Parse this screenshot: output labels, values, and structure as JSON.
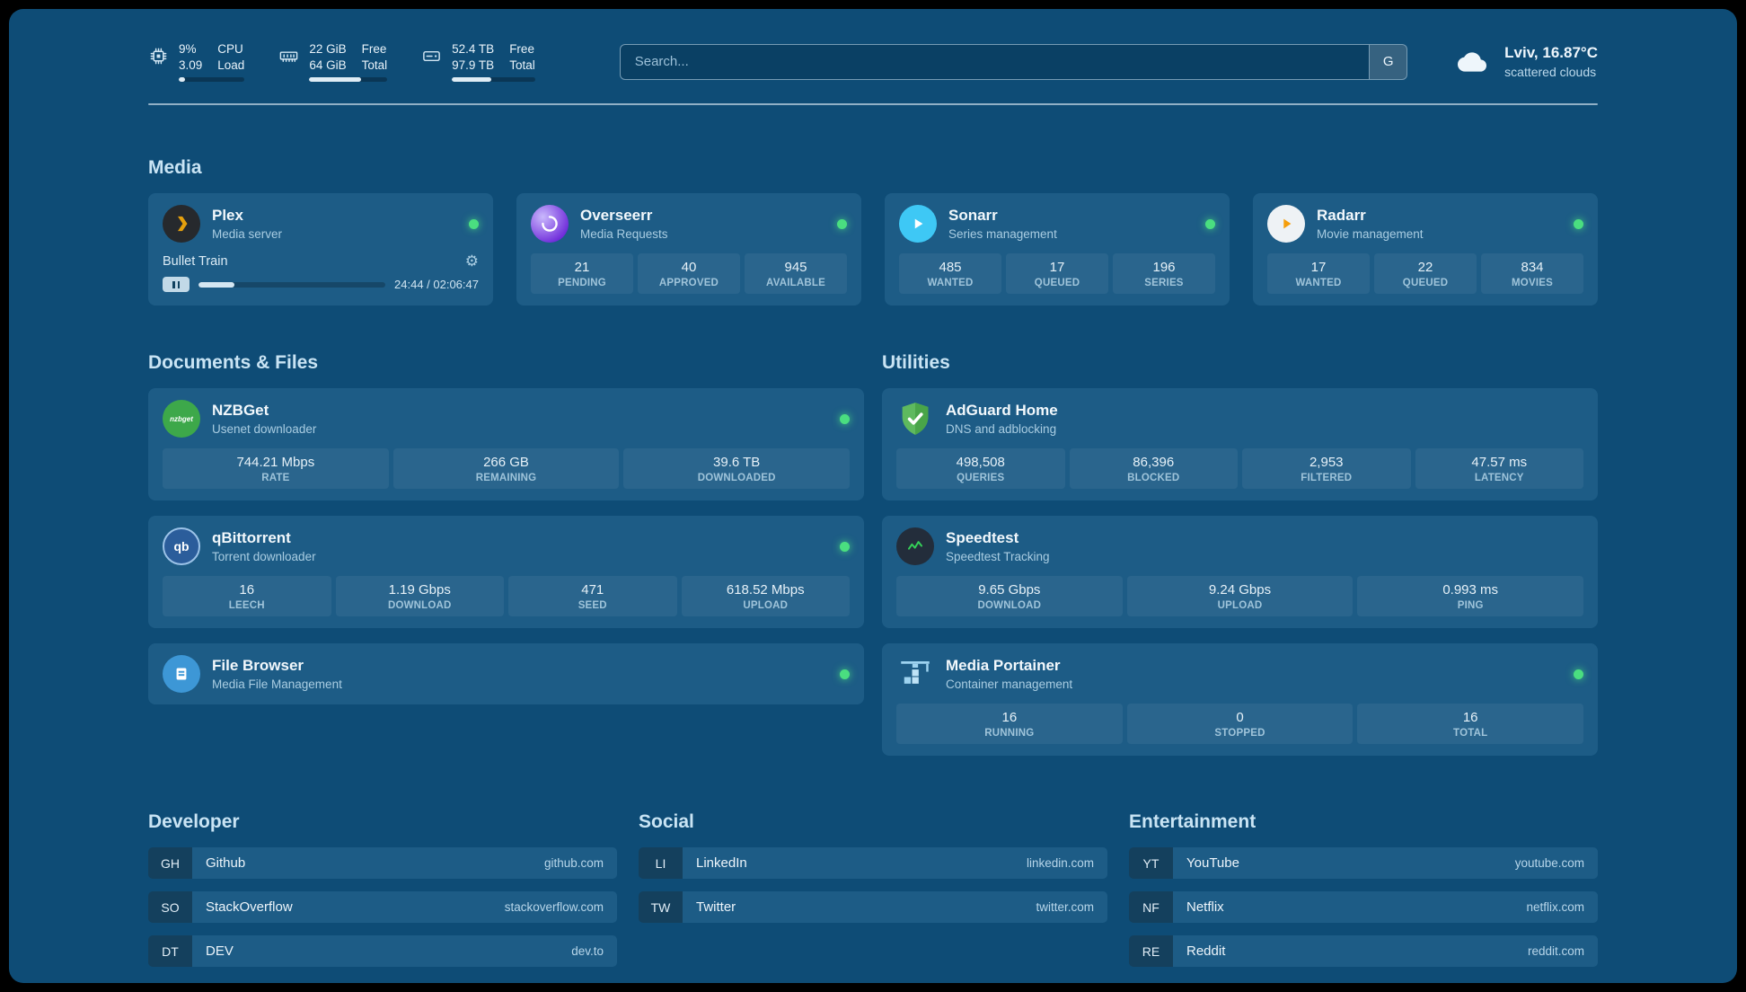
{
  "colors": {
    "background": "#0e4c76",
    "card": "#1d5c86",
    "status_green": "#4ade80"
  },
  "icons": {
    "gear": "⚙"
  },
  "header": {
    "cpu": {
      "value1": "9%",
      "label1": "CPU",
      "value2": "3.09",
      "label2": "Load"
    },
    "memory": {
      "value1": "22 GiB",
      "label1": "Free",
      "value2": "64 GiB",
      "label2": "Total"
    },
    "disk": {
      "value1": "52.4 TB",
      "label1": "Free",
      "value2": "97.9 TB",
      "label2": "Total"
    },
    "search": {
      "placeholder": "Search...",
      "button_label": "G"
    },
    "weather": {
      "location": "Lviv, 16.87°C",
      "condition": "scattered clouds"
    }
  },
  "sections": {
    "media": {
      "title": "Media",
      "plex": {
        "title": "Plex",
        "subtitle": "Media server",
        "now_playing": "Bullet Train",
        "time": "24:44 / 02:06:47"
      },
      "overseerr": {
        "title": "Overseerr",
        "subtitle": "Media Requests",
        "stats": [
          {
            "value": "21",
            "label": "PENDING"
          },
          {
            "value": "40",
            "label": "APPROVED"
          },
          {
            "value": "945",
            "label": "AVAILABLE"
          }
        ]
      },
      "sonarr": {
        "title": "Sonarr",
        "subtitle": "Series management",
        "stats": [
          {
            "value": "485",
            "label": "WANTED"
          },
          {
            "value": "17",
            "label": "QUEUED"
          },
          {
            "value": "196",
            "label": "SERIES"
          }
        ]
      },
      "radarr": {
        "title": "Radarr",
        "subtitle": "Movie management",
        "stats": [
          {
            "value": "17",
            "label": "WANTED"
          },
          {
            "value": "22",
            "label": "QUEUED"
          },
          {
            "value": "834",
            "label": "MOVIES"
          }
        ]
      }
    },
    "documents": {
      "title": "Documents & Files",
      "nzbget": {
        "title": "NZBGet",
        "subtitle": "Usenet downloader",
        "icon_text": "nzbget",
        "stats": [
          {
            "value": "744.21 Mbps",
            "label": "RATE"
          },
          {
            "value": "266 GB",
            "label": "REMAINING"
          },
          {
            "value": "39.6 TB",
            "label": "DOWNLOADED"
          }
        ]
      },
      "qbittorrent": {
        "title": "qBittorrent",
        "subtitle": "Torrent downloader",
        "icon_text": "qb",
        "stats": [
          {
            "value": "16",
            "label": "LEECH"
          },
          {
            "value": "1.19 Gbps",
            "label": "DOWNLOAD"
          },
          {
            "value": "471",
            "label": "SEED"
          },
          {
            "value": "618.52 Mbps",
            "label": "UPLOAD"
          }
        ]
      },
      "filebrowser": {
        "title": "File Browser",
        "subtitle": "Media File Management"
      }
    },
    "utilities": {
      "title": "Utilities",
      "adguard": {
        "title": "AdGuard Home",
        "subtitle": "DNS and adblocking",
        "stats": [
          {
            "value": "498,508",
            "label": "QUERIES"
          },
          {
            "value": "86,396",
            "label": "BLOCKED"
          },
          {
            "value": "2,953",
            "label": "FILTERED"
          },
          {
            "value": "47.57 ms",
            "label": "LATENCY"
          }
        ]
      },
      "speedtest": {
        "title": "Speedtest",
        "subtitle": "Speedtest Tracking",
        "stats": [
          {
            "value": "9.65 Gbps",
            "label": "DOWNLOAD"
          },
          {
            "value": "9.24 Gbps",
            "label": "UPLOAD"
          },
          {
            "value": "0.993 ms",
            "label": "PING"
          }
        ]
      },
      "portainer": {
        "title": "Media Portainer",
        "subtitle": "Container management",
        "stats": [
          {
            "value": "16",
            "label": "RUNNING"
          },
          {
            "value": "0",
            "label": "STOPPED"
          },
          {
            "value": "16",
            "label": "TOTAL"
          }
        ]
      }
    }
  },
  "bookmarks": {
    "developer": {
      "title": "Developer",
      "items": [
        {
          "abbr": "GH",
          "name": "Github",
          "url": "github.com"
        },
        {
          "abbr": "SO",
          "name": "StackOverflow",
          "url": "stackoverflow.com"
        },
        {
          "abbr": "DT",
          "name": "DEV",
          "url": "dev.to"
        }
      ]
    },
    "social": {
      "title": "Social",
      "items": [
        {
          "abbr": "LI",
          "name": "LinkedIn",
          "url": "linkedin.com"
        },
        {
          "abbr": "TW",
          "name": "Twitter",
          "url": "twitter.com"
        }
      ]
    },
    "entertainment": {
      "title": "Entertainment",
      "items": [
        {
          "abbr": "YT",
          "name": "YouTube",
          "url": "youtube.com"
        },
        {
          "abbr": "NF",
          "name": "Netflix",
          "url": "netflix.com"
        },
        {
          "abbr": "RE",
          "name": "Reddit",
          "url": "reddit.com"
        }
      ]
    }
  }
}
